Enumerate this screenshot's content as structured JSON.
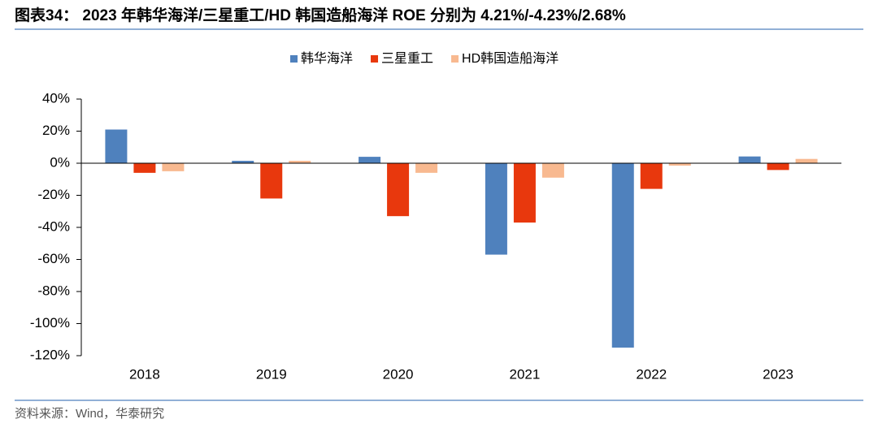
{
  "chart_data": {
    "type": "bar",
    "title": "图表34： 2023 年韩华海洋/三星重工/HD 韩国造船海洋 ROE 分别为 4.21%/-4.23%/2.68%",
    "source": "资料来源：Wind，华泰研究",
    "categories": [
      "2018",
      "2019",
      "2020",
      "2021",
      "2022",
      "2023"
    ],
    "series": [
      {
        "name": "韩华海洋",
        "color": "#4f81bd",
        "values": [
          21,
          1.5,
          4,
          -57,
          -115,
          4.21
        ]
      },
      {
        "name": "三星重工",
        "color": "#e8380d",
        "values": [
          -6,
          -22,
          -33,
          -37,
          -16,
          -4.23
        ]
      },
      {
        "name": "HD韩国造船海洋",
        "color": "#f8b990",
        "values": [
          -5,
          1.5,
          -6,
          -9,
          -1.5,
          2.68
        ]
      }
    ],
    "ylim": [
      -120,
      40
    ],
    "yticks": [
      {
        "value": -120,
        "label": "-120%"
      },
      {
        "value": -100,
        "label": "-100%"
      },
      {
        "value": -80,
        "label": "-80%"
      },
      {
        "value": -60,
        "label": "-60%"
      },
      {
        "value": -40,
        "label": "-40%"
      },
      {
        "value": -20,
        "label": "-20%"
      },
      {
        "value": 0,
        "label": "0%"
      },
      {
        "value": 20,
        "label": "20%"
      },
      {
        "value": 40,
        "label": "40%"
      }
    ],
    "grid": false,
    "legend": "top"
  }
}
